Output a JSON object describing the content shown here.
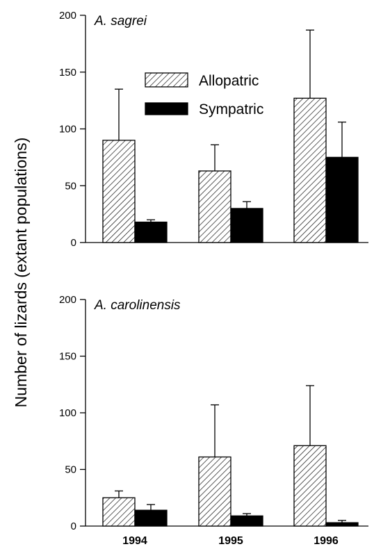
{
  "figure": {
    "ylabel": "Number of lizards (extant populations)",
    "legend": {
      "placement": "top-center of upper panel",
      "items": [
        {
          "name": "Allopatric",
          "pattern": "hatched"
        },
        {
          "name": "Sympatric",
          "pattern": "solid-black"
        }
      ]
    }
  },
  "chart_data": [
    {
      "type": "bar",
      "title": "A. sagrei",
      "categories": [
        "1994",
        "1995",
        "1996"
      ],
      "ylim": [
        0,
        200
      ],
      "yticks": [
        0,
        50,
        100,
        150,
        200
      ],
      "series": [
        {
          "name": "Allopatric",
          "values": [
            90,
            63,
            127
          ],
          "error": [
            45,
            23,
            60
          ]
        },
        {
          "name": "Sympatric",
          "values": [
            18,
            30,
            75
          ],
          "error": [
            2,
            6,
            31
          ]
        }
      ],
      "grid": false
    },
    {
      "type": "bar",
      "title": "A. carolinensis",
      "categories": [
        "1994",
        "1995",
        "1996"
      ],
      "ylim": [
        0,
        200
      ],
      "yticks": [
        0,
        50,
        100,
        150,
        200
      ],
      "series": [
        {
          "name": "Allopatric",
          "values": [
            25,
            61,
            71
          ],
          "error": [
            6,
            46,
            53
          ]
        },
        {
          "name": "Sympatric",
          "values": [
            14,
            9,
            3
          ],
          "error": [
            5,
            2,
            2
          ]
        }
      ],
      "grid": false
    }
  ]
}
